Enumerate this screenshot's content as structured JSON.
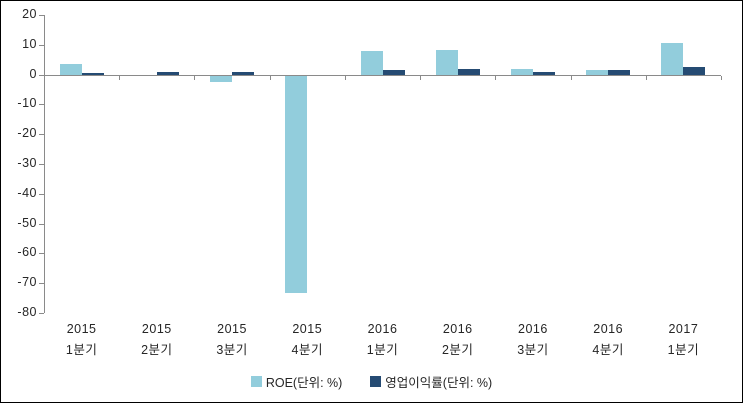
{
  "chart_data": {
    "type": "bar",
    "title": "",
    "xlabel": "",
    "ylabel": "",
    "categories": [
      "2015 1분기",
      "2015 2분기",
      "2015 3분기",
      "2015 4분기",
      "2016 1분기",
      "2016 2분기",
      "2016 3분기",
      "2016 4분기",
      "2017 1분기"
    ],
    "series": [
      {
        "name": "ROE(단위: %)",
        "color": "#92CDDC",
        "values": [
          3.7,
          0,
          -2.0,
          -72.8,
          7.9,
          8.1,
          1.8,
          1.5,
          10.5
        ]
      },
      {
        "name": "영업이익률(단위: %)",
        "color": "#254B73",
        "values": [
          0.7,
          1.0,
          0.8,
          0,
          1.6,
          2.0,
          0.8,
          1.6,
          2.6
        ]
      }
    ],
    "ylim": [
      -80,
      20
    ],
    "yticks": [
      20,
      10,
      0,
      -10,
      -20,
      -30,
      -40,
      -50,
      -60,
      -70,
      -80
    ],
    "grid": false,
    "legend_position": "bottom",
    "axis_color": "#8a8a8a",
    "text_color": "#262626"
  }
}
